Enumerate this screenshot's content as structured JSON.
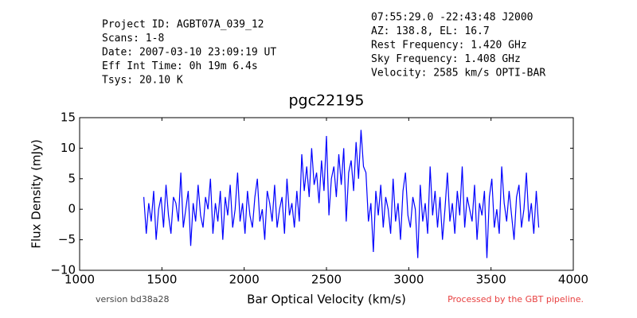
{
  "chart_data": {
    "type": "line",
    "title": "pgc22195",
    "header_left": [
      "Project ID: AGBT07A_039_12",
      "Scans: 1-8",
      "Date: 2007-03-10 23:09:19 UT",
      "Eff Int Time: 0h 19m 6.4s",
      "Tsys: 20.10 K"
    ],
    "header_right": [
      "07:55:29.0 -22:43:48 J2000",
      "AZ: 138.8, EL: 16.7",
      "Rest Frequency:   1.420 GHz",
      "Sky Frequency:    1.408 GHz",
      "Velocity: 2585 km/s OPTI-BAR"
    ],
    "footer_left": "version bd38a28",
    "footer_right": "Processed by the GBT pipeline.",
    "xlabel": "Bar Optical Velocity (km/s)",
    "ylabel": "Flux Density (mJy)",
    "xlim": [
      1000,
      4000
    ],
    "xticks": [
      1000,
      1500,
      2000,
      2500,
      3000,
      3500,
      4000
    ],
    "ylim": [
      -10,
      15
    ],
    "yticks": [
      {
        "value": -10,
        "label": "−10"
      },
      {
        "value": -5,
        "label": "−5"
      },
      0,
      5,
      10,
      15
    ],
    "color": "#0000ff",
    "x": [
      1390,
      1405,
      1420,
      1435,
      1450,
      1465,
      1480,
      1495,
      1510,
      1525,
      1540,
      1555,
      1570,
      1585,
      1600,
      1615,
      1630,
      1645,
      1660,
      1675,
      1690,
      1705,
      1720,
      1735,
      1750,
      1765,
      1780,
      1795,
      1810,
      1825,
      1840,
      1855,
      1870,
      1885,
      1900,
      1915,
      1930,
      1945,
      1960,
      1975,
      1990,
      2005,
      2020,
      2035,
      2050,
      2065,
      2080,
      2095,
      2110,
      2125,
      2140,
      2155,
      2170,
      2185,
      2200,
      2215,
      2230,
      2245,
      2260,
      2275,
      2290,
      2305,
      2320,
      2335,
      2350,
      2365,
      2380,
      2395,
      2410,
      2425,
      2440,
      2455,
      2470,
      2485,
      2500,
      2515,
      2530,
      2545,
      2560,
      2575,
      2590,
      2605,
      2620,
      2635,
      2650,
      2665,
      2680,
      2695,
      2710,
      2725,
      2740,
      2755,
      2770,
      2785,
      2800,
      2815,
      2830,
      2845,
      2860,
      2875,
      2890,
      2905,
      2920,
      2935,
      2950,
      2965,
      2980,
      2995,
      3010,
      3025,
      3040,
      3055,
      3070,
      3085,
      3100,
      3115,
      3130,
      3145,
      3160,
      3175,
      3190,
      3205,
      3220,
      3235,
      3250,
      3265,
      3280,
      3295,
      3310,
      3325,
      3340,
      3355,
      3370,
      3385,
      3400,
      3415,
      3430,
      3445,
      3460,
      3475,
      3490,
      3505,
      3520,
      3535,
      3550,
      3565,
      3580,
      3595,
      3610,
      3625,
      3640,
      3655,
      3670,
      3685,
      3700,
      3715,
      3730,
      3745,
      3760,
      3775,
      3790
    ],
    "values": [
      2,
      -4,
      1,
      -2,
      3,
      -5,
      0,
      2,
      -3,
      4,
      -1,
      -4,
      2,
      1,
      -2,
      6,
      -3,
      0,
      3,
      -6,
      1,
      -2,
      4,
      -1,
      -3,
      2,
      0,
      5,
      -4,
      1,
      -2,
      3,
      -5,
      2,
      -1,
      4,
      -3,
      0,
      6,
      -2,
      1,
      -4,
      3,
      -1,
      -3,
      2,
      5,
      -2,
      0,
      -5,
      3,
      1,
      -2,
      4,
      -3,
      0,
      2,
      -4,
      5,
      -1,
      1,
      -3,
      3,
      -2,
      9,
      3,
      7,
      2,
      10,
      4,
      6,
      1,
      8,
      3,
      12,
      -1,
      5,
      7,
      2,
      9,
      4,
      10,
      -2,
      6,
      8,
      3,
      11,
      5,
      13,
      7,
      6,
      -2,
      1,
      -7,
      3,
      -1,
      4,
      -3,
      2,
      0,
      -4,
      5,
      -2,
      1,
      -5,
      3,
      6,
      -1,
      -3,
      2,
      0,
      -8,
      4,
      -2,
      1,
      -4,
      7,
      -1,
      3,
      -3,
      2,
      -5,
      0,
      6,
      -2,
      1,
      -4,
      3,
      -1,
      7,
      -3,
      2,
      0,
      -2,
      4,
      -5,
      1,
      -1,
      3,
      -8,
      2,
      5,
      -3,
      0,
      -4,
      7,
      1,
      -2,
      3,
      -1,
      -5,
      2,
      4,
      -3,
      0,
      6,
      -2,
      1,
      -4,
      3,
      -3
    ]
  }
}
